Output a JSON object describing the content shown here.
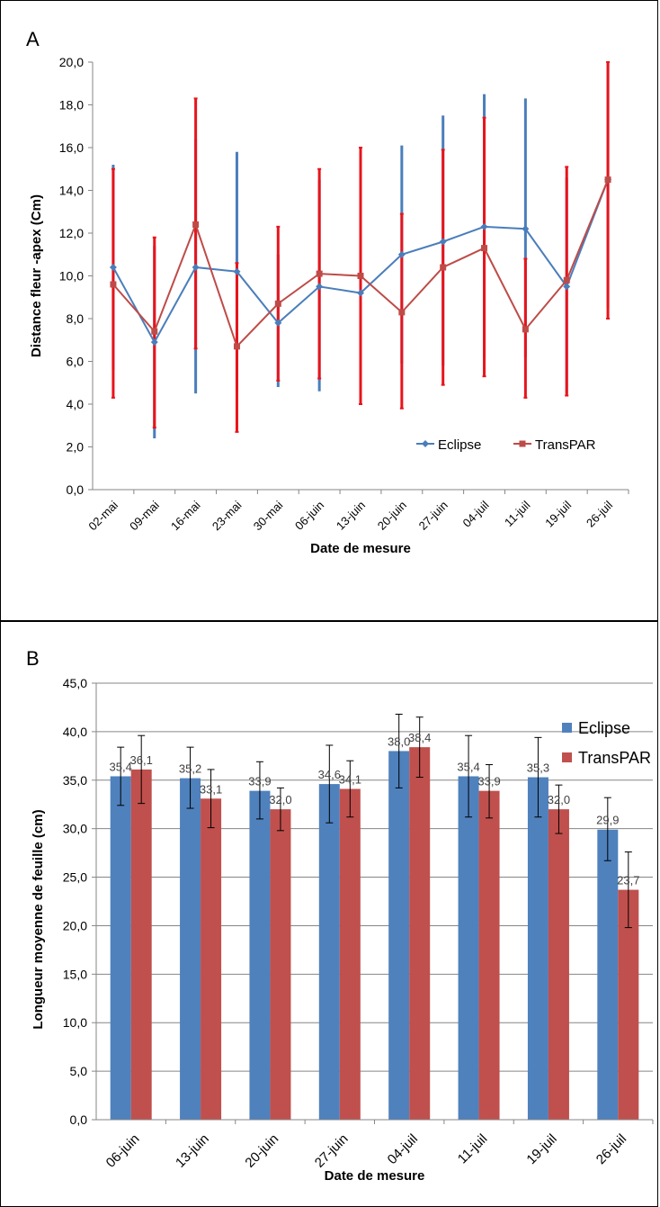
{
  "chart_data": [
    {
      "type": "line",
      "panel_label": "A",
      "xlabel": "Date de mesure",
      "ylabel": "Distance fleur -apex (Cm)",
      "ylim": [
        0,
        20
      ],
      "ytick_step": 2,
      "ytick_labels": [
        "0,0",
        "2,0",
        "4,0",
        "6,0",
        "8,0",
        "10,0",
        "12,0",
        "14,0",
        "16,0",
        "18,0",
        "20,0"
      ],
      "categories": [
        "02-mai",
        "09-mai",
        "16-mai",
        "23-mai",
        "30-mai",
        "06-juin",
        "13-juin",
        "20-juin",
        "27-juin",
        "04-juil",
        "11-juil",
        "19-juil",
        "26-juil"
      ],
      "grid": false,
      "legend_position": "bottom-right",
      "series": [
        {
          "name": "Eclipse",
          "color": "#4a7ebb",
          "marker": "diamond",
          "values": [
            10.4,
            6.9,
            10.4,
            10.2,
            7.8,
            9.5,
            9.2,
            11.0,
            11.6,
            12.3,
            12.2,
            9.5,
            14.5
          ],
          "error_low": [
            5.6,
            2.4,
            4.5,
            4.6,
            4.8,
            4.6,
            5.3,
            5.9,
            5.8,
            6.2,
            6.2,
            4.5,
            8.5
          ],
          "error_high": [
            15.2,
            11.4,
            16.4,
            15.8,
            11.0,
            14.5,
            13.1,
            16.1,
            17.5,
            18.5,
            18.3,
            14.6,
            20.0
          ]
        },
        {
          "name": "TransPAR",
          "color": "#be4b48",
          "error_color": "#e8141b",
          "marker": "square",
          "values": [
            9.6,
            7.4,
            12.4,
            6.7,
            8.7,
            10.1,
            10.0,
            8.3,
            10.4,
            11.3,
            7.5,
            9.8,
            14.5
          ],
          "error_low": [
            4.3,
            2.9,
            6.6,
            2.7,
            5.1,
            5.2,
            4.0,
            3.8,
            4.9,
            5.3,
            4.3,
            4.4,
            8.0
          ],
          "error_high": [
            15.0,
            11.8,
            18.3,
            10.6,
            12.3,
            15.0,
            16.0,
            12.9,
            15.9,
            17.4,
            10.8,
            15.1,
            20.0
          ]
        }
      ]
    },
    {
      "type": "bar",
      "panel_label": "B",
      "xlabel": "Date de  mesure",
      "ylabel": "Longueur moyenne de feuille (cm)",
      "ylim": [
        0,
        45
      ],
      "ytick_step": 5,
      "ytick_labels": [
        "0,0",
        "5,0",
        "10,0",
        "15,0",
        "20,0",
        "25,0",
        "30,0",
        "35,0",
        "40,0",
        "45,0"
      ],
      "categories": [
        "06-juin",
        "13-juin",
        "20-juin",
        "27-juin",
        "04-juil",
        "11-juil",
        "19-juil",
        "26-juil"
      ],
      "grid": true,
      "legend_position": "top-right",
      "series": [
        {
          "name": "Eclipse",
          "color": "#4f81bd",
          "values": [
            35.4,
            35.2,
            33.9,
            34.6,
            38.0,
            35.4,
            35.3,
            29.9
          ],
          "labels": [
            "35,4",
            "35,2",
            "33,9",
            "34,6",
            "38,0",
            "35,4",
            "35,3",
            "29,9"
          ],
          "error_low": [
            32.4,
            32.1,
            31.0,
            30.6,
            34.2,
            31.2,
            31.2,
            26.7
          ],
          "error_high": [
            38.4,
            38.4,
            36.9,
            38.6,
            41.8,
            39.6,
            39.4,
            33.2
          ]
        },
        {
          "name": "TransPAR",
          "color": "#c0504d",
          "values": [
            36.1,
            33.1,
            32.0,
            34.1,
            38.4,
            33.9,
            32.0,
            23.7
          ],
          "labels": [
            "36,1",
            "33,1",
            "32,0",
            "34,1",
            "38,4",
            "33,9",
            "32,0",
            "23,7"
          ],
          "error_low": [
            32.6,
            30.1,
            29.8,
            31.2,
            35.3,
            31.1,
            29.5,
            19.8
          ],
          "error_high": [
            39.6,
            36.1,
            34.2,
            37.0,
            41.5,
            36.6,
            34.5,
            27.6
          ]
        }
      ]
    }
  ]
}
